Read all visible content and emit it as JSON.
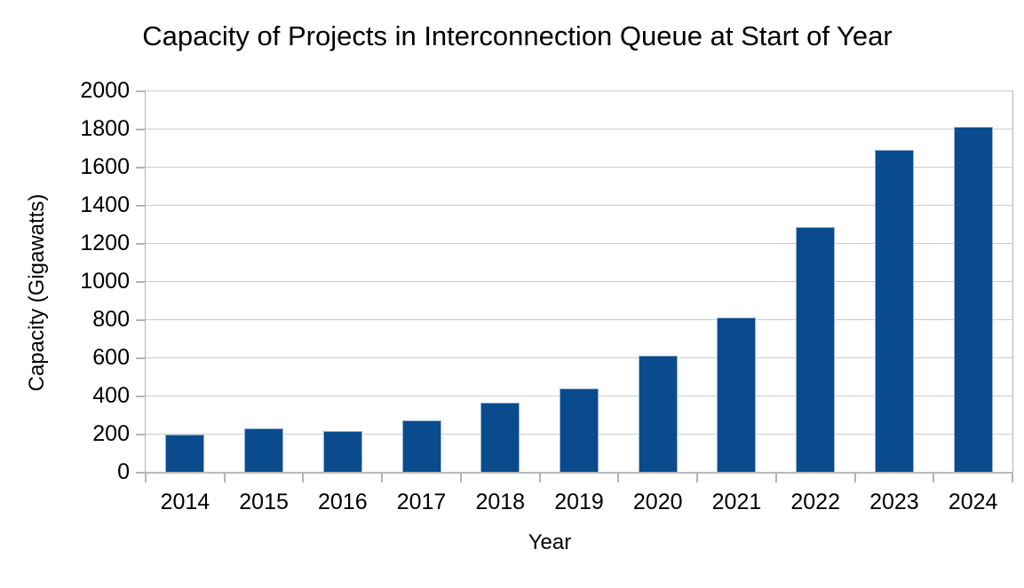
{
  "chart_data": {
    "type": "bar",
    "title": "Capacity of Projects in Interconnection Queue at Start of Year",
    "xlabel": "Year",
    "ylabel": "Capacity (Gigawatts)",
    "categories": [
      "2014",
      "2015",
      "2016",
      "2017",
      "2018",
      "2019",
      "2020",
      "2021",
      "2022",
      "2023",
      "2024"
    ],
    "values": [
      195,
      230,
      215,
      270,
      365,
      435,
      610,
      810,
      1285,
      1690,
      1810
    ],
    "ylim": [
      0,
      2000
    ],
    "ytick_step": 200,
    "ytick_labels": [
      "0",
      "200",
      "400",
      "600",
      "800",
      "1000",
      "1200",
      "1400",
      "1600",
      "1800",
      "2000"
    ],
    "grid": true,
    "legend_position": "none",
    "colors": {
      "bar": "#094b8d",
      "bar_edge": "#97b0d0",
      "grid": "#cccccc",
      "axis": "#b3b3b3",
      "text": "#000000",
      "background": "#ffffff"
    }
  }
}
